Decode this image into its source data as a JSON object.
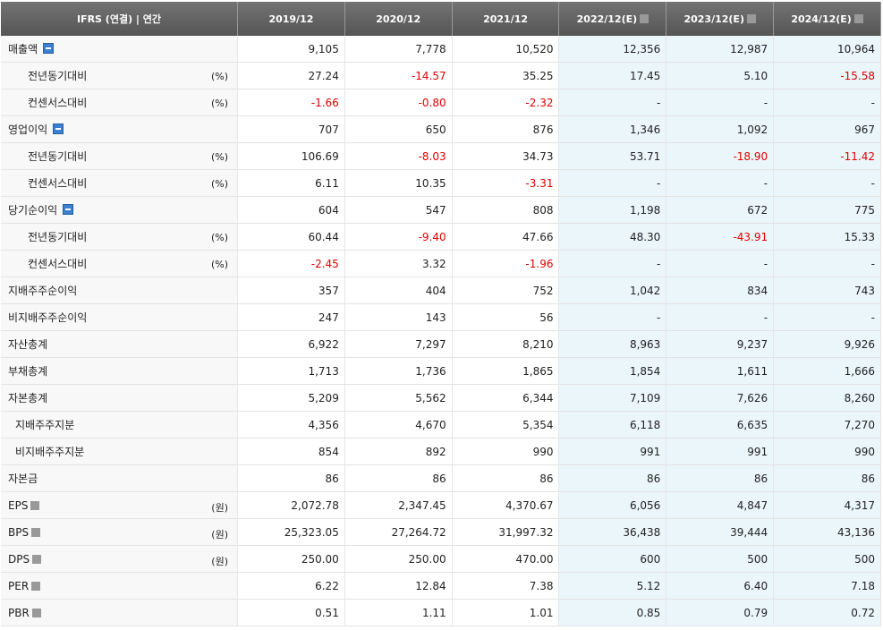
{
  "header": {
    "title": "IFRS (연결) | 연간",
    "columns": [
      "2019/12",
      "2020/12",
      "2021/12",
      "2022/12(E)",
      "2023/12(E)",
      "2024/12(E)"
    ]
  },
  "rows": [
    {
      "label": "매출액",
      "toggle": true,
      "values": [
        "9,105",
        "7,778",
        "10,520",
        "12,356",
        "12,987",
        "10,964"
      ]
    },
    {
      "label": "전년동기대비",
      "unit": "(%)",
      "indent": 2,
      "values": [
        "27.24",
        "-14.57",
        "35.25",
        "17.45",
        "5.10",
        "-15.58"
      ]
    },
    {
      "label": "컨센서스대비",
      "unit": "(%)",
      "indent": 2,
      "values": [
        "-1.66",
        "-0.80",
        "-2.32",
        "-",
        "-",
        "-"
      ]
    },
    {
      "label": "영업이익",
      "toggle": true,
      "values": [
        "707",
        "650",
        "876",
        "1,346",
        "1,092",
        "967"
      ]
    },
    {
      "label": "전년동기대비",
      "unit": "(%)",
      "indent": 2,
      "values": [
        "106.69",
        "-8.03",
        "34.73",
        "53.71",
        "-18.90",
        "-11.42"
      ]
    },
    {
      "label": "컨센서스대비",
      "unit": "(%)",
      "indent": 2,
      "values": [
        "6.11",
        "10.35",
        "-3.31",
        "-",
        "-",
        "-"
      ]
    },
    {
      "label": "당기순이익",
      "toggle": true,
      "values": [
        "604",
        "547",
        "808",
        "1,198",
        "672",
        "775"
      ]
    },
    {
      "label": "전년동기대비",
      "unit": "(%)",
      "indent": 2,
      "values": [
        "60.44",
        "-9.40",
        "47.66",
        "48.30",
        "-43.91",
        "15.33"
      ]
    },
    {
      "label": "컨센서스대비",
      "unit": "(%)",
      "indent": 2,
      "values": [
        "-2.45",
        "3.32",
        "-1.96",
        "-",
        "-",
        "-"
      ]
    },
    {
      "label": "지배주주순이익",
      "values": [
        "357",
        "404",
        "752",
        "1,042",
        "834",
        "743"
      ]
    },
    {
      "label": "비지배주주순이익",
      "values": [
        "247",
        "143",
        "56",
        "-",
        "-",
        "-"
      ]
    },
    {
      "label": "자산총계",
      "values": [
        "6,922",
        "7,297",
        "8,210",
        "8,963",
        "9,237",
        "9,926"
      ]
    },
    {
      "label": "부채총계",
      "values": [
        "1,713",
        "1,736",
        "1,865",
        "1,854",
        "1,611",
        "1,666"
      ]
    },
    {
      "label": "자본총계",
      "values": [
        "5,209",
        "5,562",
        "6,344",
        "7,109",
        "7,626",
        "8,260"
      ]
    },
    {
      "label": "지배주주지분",
      "indent": 1,
      "values": [
        "4,356",
        "4,670",
        "5,354",
        "6,118",
        "6,635",
        "7,270"
      ]
    },
    {
      "label": "비지배주주지분",
      "indent": 1,
      "values": [
        "854",
        "892",
        "990",
        "991",
        "991",
        "990"
      ]
    },
    {
      "label": "자본금",
      "values": [
        "86",
        "86",
        "86",
        "86",
        "86",
        "86"
      ]
    },
    {
      "label": "EPS",
      "help": true,
      "unit": "(원)",
      "values": [
        "2,072.78",
        "2,347.45",
        "4,370.67",
        "6,056",
        "4,847",
        "4,317"
      ]
    },
    {
      "label": "BPS",
      "help": true,
      "unit": "(원)",
      "values": [
        "25,323.05",
        "27,264.72",
        "31,997.32",
        "36,438",
        "39,444",
        "43,136"
      ]
    },
    {
      "label": "DPS",
      "help": true,
      "unit": "(원)",
      "values": [
        "250.00",
        "250.00",
        "470.00",
        "600",
        "500",
        "500"
      ]
    },
    {
      "label": "PER",
      "help": true,
      "values": [
        "6.22",
        "12.84",
        "7.38",
        "5.12",
        "6.40",
        "7.18"
      ]
    },
    {
      "label": "PBR",
      "help": true,
      "values": [
        "0.51",
        "1.11",
        "1.01",
        "0.85",
        "0.79",
        "0.72"
      ]
    }
  ]
}
